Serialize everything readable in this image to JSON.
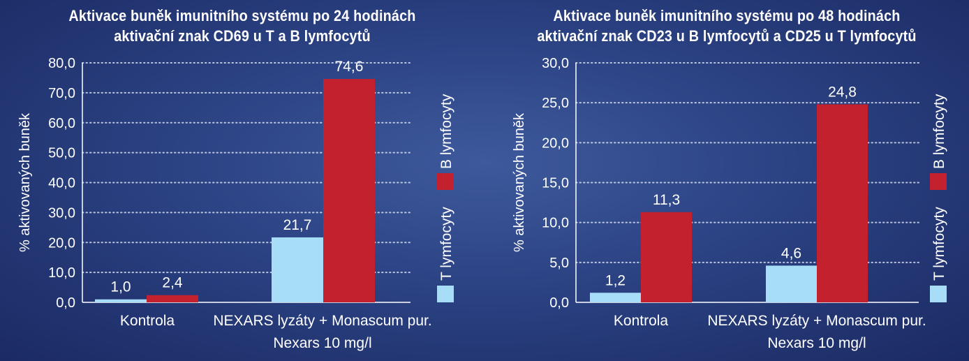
{
  "colors": {
    "t_lymfocyty": "#a7ddf6",
    "b_lymfocyty": "#c4212f",
    "grid": "#dfe6f5",
    "axis": "#ffffff"
  },
  "chart_data": [
    {
      "type": "bar",
      "title": "Aktivace buněk imunitního systému po 24 hodinách",
      "subtitle": "aktivační znak CD69 u T a B lymfocytů",
      "ylabel": "% aktivovaných buněk",
      "xlabel": "",
      "ylim": [
        0,
        80
      ],
      "yticks": [
        "0,0",
        "10,0",
        "20,0",
        "30,0",
        "40,0",
        "50,0",
        "60,0",
        "70,0",
        "80,0"
      ],
      "grid": true,
      "legend_position": "right, vertical",
      "categories": [
        [
          "Kontrola"
        ],
        [
          "NEXARS lyzáty + Monascum pur.",
          "Nexars 10 mg/l"
        ]
      ],
      "series": [
        {
          "name": "T lymfocyty",
          "color": "#a7ddf6",
          "values": [
            1.0,
            21.7
          ],
          "labels": [
            "1,0",
            "21,7"
          ]
        },
        {
          "name": "B lymfocyty",
          "color": "#c4212f",
          "values": [
            2.4,
            74.6
          ],
          "labels": [
            "2,4",
            "74,6"
          ]
        }
      ]
    },
    {
      "type": "bar",
      "title": "Aktivace buněk imunitního systému po 48 hodinách",
      "subtitle": "aktivační znak CD23 u B lymfocytů a CD25 u T lymfocytů",
      "ylabel": "% aktivovaných buněk",
      "xlabel": "",
      "ylim": [
        0,
        30
      ],
      "yticks": [
        "0,0",
        "5,0",
        "10,0",
        "15,0",
        "20,0",
        "25,0",
        "30,0"
      ],
      "grid": true,
      "legend_position": "right, vertical",
      "categories": [
        [
          "Kontrola"
        ],
        [
          "NEXARS lyzáty + Monascum pur.",
          "Nexars 10 mg/l"
        ]
      ],
      "series": [
        {
          "name": "T lymfocyty",
          "color": "#a7ddf6",
          "values": [
            1.2,
            4.6
          ],
          "labels": [
            "1,2",
            "4,6"
          ]
        },
        {
          "name": "B lymfocyty",
          "color": "#c4212f",
          "values": [
            11.3,
            24.8
          ],
          "labels": [
            "11,3",
            "24,8"
          ]
        }
      ]
    }
  ]
}
